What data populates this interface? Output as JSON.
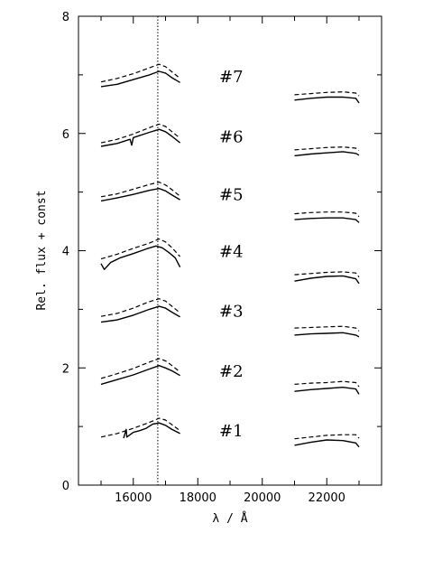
{
  "chart_data": {
    "type": "line",
    "title": "",
    "xlabel": "λ / Å",
    "ylabel": "Rel. flux + const",
    "xlim": [
      14300,
      23700
    ],
    "ylim": [
      0,
      8
    ],
    "x_ticks": [
      16000,
      18000,
      20000,
      22000
    ],
    "y_ticks": [
      0,
      2,
      4,
      6,
      8
    ],
    "grid": false,
    "legend": "none",
    "reference_line": {
      "x": 16760,
      "style": "dotted"
    },
    "series_styles": {
      "observed": "solid",
      "model": "dashed"
    },
    "panels": [
      {
        "label": "#1",
        "observed_h": {
          "x": [
            15700,
            15780,
            15800,
            16000,
            16200,
            16400,
            16600,
            16800,
            17000,
            17200,
            17450
          ],
          "y": [
            0.8,
            0.95,
            0.82,
            0.9,
            0.93,
            0.97,
            1.04,
            1.06,
            1.02,
            0.95,
            0.88
          ]
        },
        "model_h": {
          "x": [
            15000,
            15500,
            16000,
            16500,
            16800,
            17000,
            17200,
            17450
          ],
          "y": [
            0.82,
            0.88,
            0.97,
            1.07,
            1.14,
            1.11,
            1.03,
            0.93
          ]
        },
        "observed_k": {
          "x": [
            21000,
            21500,
            22000,
            22500,
            22900,
            23000
          ],
          "y": [
            0.68,
            0.73,
            0.77,
            0.76,
            0.72,
            0.65
          ]
        },
        "model_k": {
          "x": [
            21000,
            21500,
            22000,
            22500,
            22900,
            23000
          ],
          "y": [
            0.79,
            0.82,
            0.85,
            0.86,
            0.86,
            0.8
          ]
        }
      },
      {
        "label": "#2",
        "observed_h": {
          "x": [
            15000,
            15500,
            16000,
            16500,
            16800,
            17000,
            17200,
            17450
          ],
          "y": [
            1.72,
            1.8,
            1.88,
            1.98,
            2.04,
            2.0,
            1.95,
            1.87
          ]
        },
        "model_h": {
          "x": [
            15000,
            15500,
            16000,
            16500,
            16800,
            17000,
            17200,
            17450
          ],
          "y": [
            1.82,
            1.9,
            1.99,
            2.1,
            2.16,
            2.12,
            2.04,
            1.93
          ]
        },
        "observed_k": {
          "x": [
            21000,
            21500,
            22000,
            22500,
            22900,
            23000
          ],
          "y": [
            1.6,
            1.63,
            1.65,
            1.67,
            1.64,
            1.55
          ]
        },
        "model_k": {
          "x": [
            21000,
            21500,
            22000,
            22500,
            22900,
            23000
          ],
          "y": [
            1.72,
            1.74,
            1.75,
            1.77,
            1.75,
            1.68
          ]
        }
      },
      {
        "label": "#3",
        "observed_h": {
          "x": [
            15000,
            15500,
            16000,
            16500,
            16800,
            17000,
            17200,
            17450
          ],
          "y": [
            2.78,
            2.82,
            2.9,
            3.0,
            3.05,
            3.02,
            2.95,
            2.87
          ]
        },
        "model_h": {
          "x": [
            15000,
            15500,
            16000,
            16500,
            16800,
            17000,
            17200,
            17450
          ],
          "y": [
            2.88,
            2.93,
            3.02,
            3.13,
            3.18,
            3.14,
            3.05,
            2.94
          ]
        },
        "observed_k": {
          "x": [
            21000,
            21500,
            22000,
            22500,
            22900,
            23000
          ],
          "y": [
            2.56,
            2.58,
            2.59,
            2.6,
            2.56,
            2.53
          ]
        },
        "model_k": {
          "x": [
            21000,
            21500,
            22000,
            22500,
            22900,
            23000
          ],
          "y": [
            2.68,
            2.69,
            2.7,
            2.71,
            2.68,
            2.63
          ]
        }
      },
      {
        "label": "#4",
        "observed_h": {
          "x": [
            15000,
            15100,
            15300,
            15600,
            16000,
            16400,
            16700,
            16900,
            17100,
            17300,
            17450
          ],
          "y": [
            3.78,
            3.68,
            3.8,
            3.88,
            3.95,
            4.03,
            4.08,
            4.05,
            3.97,
            3.88,
            3.72
          ]
        },
        "model_h": {
          "x": [
            15000,
            15500,
            16000,
            16500,
            16800,
            17000,
            17200,
            17450
          ],
          "y": [
            3.86,
            3.94,
            4.04,
            4.13,
            4.2,
            4.15,
            4.05,
            3.9
          ]
        },
        "observed_k": {
          "x": [
            21000,
            21500,
            22000,
            22500,
            22900,
            23000
          ],
          "y": [
            3.48,
            3.53,
            3.56,
            3.57,
            3.52,
            3.44
          ]
        },
        "model_k": {
          "x": [
            21000,
            21500,
            22000,
            22500,
            22900,
            23000
          ],
          "y": [
            3.59,
            3.61,
            3.63,
            3.64,
            3.62,
            3.55
          ]
        }
      },
      {
        "label": "#5",
        "observed_h": {
          "x": [
            15000,
            15500,
            16000,
            16500,
            16800,
            17000,
            17200,
            17450
          ],
          "y": [
            4.85,
            4.9,
            4.96,
            5.03,
            5.06,
            5.02,
            4.95,
            4.87
          ]
        },
        "model_h": {
          "x": [
            15000,
            15500,
            16000,
            16500,
            16800,
            17000,
            17200,
            17450
          ],
          "y": [
            4.92,
            4.97,
            5.05,
            5.13,
            5.17,
            5.12,
            5.04,
            4.93
          ]
        },
        "observed_k": {
          "x": [
            21000,
            21500,
            22000,
            22500,
            22900,
            23000
          ],
          "y": [
            4.53,
            4.55,
            4.56,
            4.56,
            4.53,
            4.48
          ]
        },
        "model_k": {
          "x": [
            21000,
            21500,
            22000,
            22500,
            22900,
            23000
          ],
          "y": [
            4.63,
            4.65,
            4.66,
            4.66,
            4.64,
            4.58
          ]
        }
      },
      {
        "label": "#6",
        "observed_h": {
          "x": [
            15000,
            15500,
            15900,
            15950,
            16000,
            16500,
            16800,
            17000,
            17200,
            17450
          ],
          "y": [
            5.78,
            5.83,
            5.9,
            5.8,
            5.93,
            6.02,
            6.07,
            6.03,
            5.95,
            5.84
          ]
        },
        "model_h": {
          "x": [
            15000,
            15500,
            16000,
            16500,
            16800,
            17000,
            17200,
            17450
          ],
          "y": [
            5.84,
            5.9,
            5.99,
            6.1,
            6.16,
            6.12,
            6.03,
            5.92
          ]
        },
        "observed_k": {
          "x": [
            21000,
            21500,
            22000,
            22500,
            22900,
            23000
          ],
          "y": [
            5.62,
            5.65,
            5.67,
            5.69,
            5.66,
            5.63
          ]
        },
        "model_k": {
          "x": [
            21000,
            21500,
            22000,
            22500,
            22900,
            23000
          ],
          "y": [
            5.72,
            5.74,
            5.76,
            5.77,
            5.75,
            5.71
          ]
        }
      },
      {
        "label": "#7",
        "observed_h": {
          "x": [
            15000,
            15500,
            16000,
            16500,
            16800,
            17000,
            17200,
            17450
          ],
          "y": [
            6.8,
            6.84,
            6.92,
            7.0,
            7.06,
            7.03,
            6.95,
            6.87
          ]
        },
        "model_h": {
          "x": [
            15000,
            15500,
            16000,
            16500,
            16800,
            17000,
            17200,
            17450
          ],
          "y": [
            6.88,
            6.94,
            7.02,
            7.12,
            7.18,
            7.14,
            7.05,
            6.94
          ]
        },
        "observed_k": {
          "x": [
            21000,
            21500,
            22000,
            22500,
            22900,
            23000
          ],
          "y": [
            6.57,
            6.6,
            6.62,
            6.62,
            6.6,
            6.52
          ]
        },
        "model_k": {
          "x": [
            21000,
            21500,
            22000,
            22500,
            22900,
            23000
          ],
          "y": [
            6.66,
            6.68,
            6.7,
            6.71,
            6.69,
            6.64
          ]
        }
      }
    ]
  }
}
